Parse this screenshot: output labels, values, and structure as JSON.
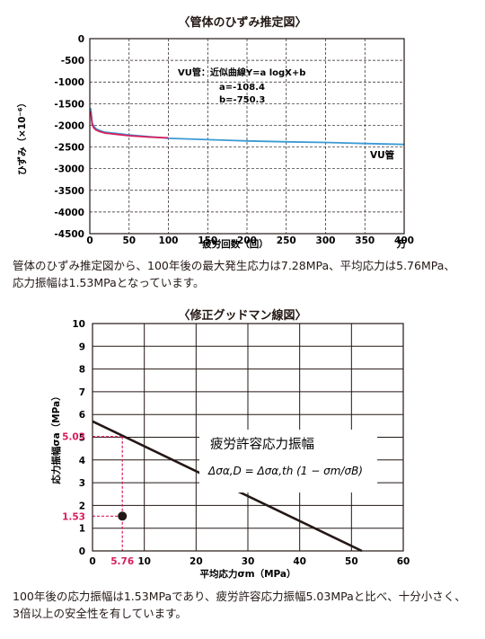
{
  "chart_data": [
    {
      "type": "line",
      "title": "〈管体のひずみ推定図〉",
      "xlabel": "疲労回数（回）",
      "x_unit": "万",
      "ylabel": "ひずみ（×10⁻⁶）",
      "xlim": [
        0,
        400
      ],
      "ylim": [
        -4500,
        0
      ],
      "x_ticks": [
        "0",
        "50",
        "100",
        "150",
        "200",
        "250",
        "300",
        "350",
        "400"
      ],
      "y_ticks": [
        "0",
        "-500",
        "-1000",
        "-1500",
        "-2000",
        "-2500",
        "-3000",
        "-3500",
        "-4000",
        "-4500"
      ],
      "grid": true,
      "annotation": {
        "heading": "VU管：近似曲線Y=a logX+b",
        "a": "a=-108.4",
        "b": "b=-750.3"
      },
      "series": [
        {
          "name": "VU管",
          "color": "#3b9ad4",
          "type": "fit",
          "a": -108.4,
          "b": -750.3,
          "x": [
            1,
            3,
            5,
            8,
            12,
            16,
            20,
            30,
            50,
            75,
            100,
            150,
            200,
            250,
            300,
            350,
            400
          ],
          "y": [
            -1600,
            -1940,
            -2020,
            -2080,
            -2115,
            -2140,
            -2160,
            -2180,
            -2220,
            -2260,
            -2300,
            -2330,
            -2360,
            -2380,
            -2395,
            -2420,
            -2440
          ]
        },
        {
          "name": "",
          "color": "#d91c5c",
          "type": "measured",
          "x": [
            1,
            3,
            5,
            8,
            12,
            16,
            20,
            30,
            50,
            75,
            100
          ],
          "y": [
            -1680,
            -1980,
            -2060,
            -2110,
            -2140,
            -2160,
            -2180,
            -2200,
            -2240,
            -2270,
            -2290
          ]
        }
      ]
    },
    {
      "type": "line",
      "title": "〈修正グッドマン線図〉",
      "xlabel": "平均応力σm（MPa）",
      "ylabel": "応力振幅σa（MPa）",
      "xlim": [
        0,
        60
      ],
      "ylim": [
        0,
        10
      ],
      "x_ticks": [
        "0",
        "10",
        "20",
        "30",
        "40",
        "50",
        "60"
      ],
      "y_ticks": [
        "0",
        "1",
        "2",
        "3",
        "4",
        "5",
        "6",
        "7",
        "8",
        "9",
        "10"
      ],
      "grid": true,
      "line": {
        "x": [
          0,
          52
        ],
        "y": [
          5.7,
          0
        ]
      },
      "point": {
        "x": 5.76,
        "y": 1.53
      },
      "point_label_x": "5.76",
      "point_label_y": "1.53",
      "ref_label_y": "5.03",
      "ref_value": 5.03,
      "annotation_title": "疲労許容応力振幅",
      "formula": "Δσα,D = Δσα,th (1 − σm/σB)"
    }
  ],
  "text": {
    "para1_line1": "管体のひずみ推定図から、100年後の最大発生応力は7.28MPa、平均応力は5.76MPa、",
    "para1_line2": "応力振幅は1.53MPaとなっています。",
    "para2_line1": "100年後の応力振幅は1.53MPaであり、疲労許容応力振幅5.03MPaと比べ、十分小さく、",
    "para2_line2": "3倍以上の安全性を有しています。"
  },
  "colors": {
    "accent": "#d91c5c",
    "line_blue": "#3b9ad4",
    "text": "#231815"
  }
}
